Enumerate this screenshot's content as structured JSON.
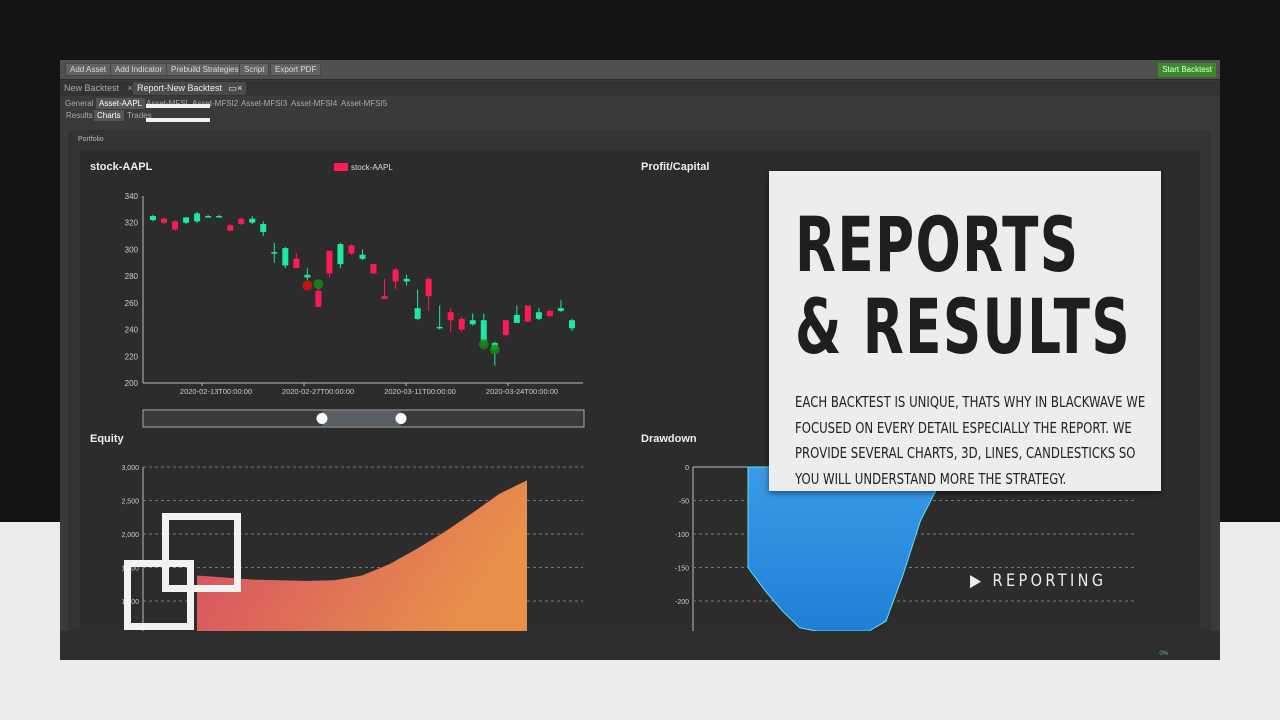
{
  "toolbar": {
    "buttons": [
      "Add Asset",
      "Add Indicator",
      "Prebuild Strategies",
      "Script",
      "Export PDF"
    ],
    "start": "Start Backtest"
  },
  "tabs": [
    {
      "label": "New Backtest",
      "close": "×"
    },
    {
      "label": "Report-New Backtest",
      "close": "×"
    }
  ],
  "asset_tabs": [
    "General",
    "Asset-AAPL",
    "Asset-MFSI",
    "Asset-MFSI2",
    "Asset-MFSI3",
    "Asset-MFSI4",
    "Asset-MFSI5"
  ],
  "view_tabs": [
    "Results",
    "Charts",
    "Trades"
  ],
  "portfolio_label": "Portfolio",
  "colors": {
    "up": "#1de9a0",
    "down": "#ff1a55",
    "buy_marker": "#138a13",
    "sell_marker": "#e01010",
    "equity_top": "#e8904a",
    "equity_bottom": "#d44a66",
    "drawdown": "#1f7fd6",
    "start_button": "#3c8a2a"
  },
  "chart_data": [
    {
      "type": "candlestick",
      "title": "stock-AAPL",
      "legend": "stock-AAPL",
      "legend_placement": "top-center",
      "ylim": [
        200,
        340
      ],
      "yticks": [
        200,
        220,
        240,
        260,
        280,
        300,
        320,
        340
      ],
      "xtick_labels": [
        "2020-02-13T00:00:00",
        "2020-02-27T00:00:00",
        "2020-03-11T00:00:00",
        "2020-03-24T00:00:00"
      ],
      "candles": [
        [
          322,
          326,
          321,
          325
        ],
        [
          323,
          324,
          319,
          320
        ],
        [
          321,
          322,
          314,
          315
        ],
        [
          320,
          324,
          319,
          324
        ],
        [
          321,
          328,
          320,
          327
        ],
        [
          325,
          326,
          324,
          325
        ],
        [
          325,
          326,
          324,
          325
        ],
        [
          318,
          319,
          314,
          314
        ],
        [
          323,
          324,
          318,
          319
        ],
        [
          320,
          325,
          319,
          323
        ],
        [
          313,
          321,
          310,
          319
        ],
        [
          298,
          305,
          290,
          298
        ],
        [
          288,
          302,
          286,
          301
        ],
        [
          293,
          297,
          286,
          286
        ],
        [
          279,
          286,
          277,
          281
        ],
        [
          269,
          271,
          257,
          257
        ],
        [
          299,
          299,
          279,
          282
        ],
        [
          289,
          305,
          286,
          304
        ],
        [
          303,
          304,
          296,
          297
        ],
        [
          293,
          300,
          292,
          296
        ],
        [
          289,
          289,
          282,
          282
        ],
        [
          265,
          278,
          263,
          263
        ],
        [
          285,
          286,
          270,
          276
        ],
        [
          276,
          281,
          273,
          278
        ],
        [
          248,
          270,
          247,
          256
        ],
        [
          278,
          279,
          254,
          265
        ],
        [
          242,
          258,
          240,
          242
        ],
        [
          253,
          256,
          238,
          247
        ],
        [
          248,
          250,
          238,
          240
        ],
        [
          244,
          252,
          243,
          247
        ],
        [
          231,
          252,
          228,
          247
        ],
        [
          225,
          231,
          213,
          230
        ],
        [
          247,
          247,
          235,
          236
        ],
        [
          245,
          258,
          245,
          251
        ],
        [
          258,
          258,
          246,
          246
        ],
        [
          248,
          256,
          247,
          253
        ],
        [
          254,
          255,
          250,
          250
        ],
        [
          254,
          262,
          253,
          256
        ],
        [
          241,
          248,
          239,
          247
        ]
      ],
      "markers": [
        {
          "candle": 14,
          "type": "sell",
          "price": 273
        },
        {
          "candle": 15,
          "type": "buy",
          "price": 274
        },
        {
          "candle": 30,
          "type": "buy",
          "price": 229
        },
        {
          "candle": 31,
          "type": "buy",
          "price": 225
        }
      ]
    },
    {
      "type": "area",
      "title": "Equity",
      "yticks": [
        "3,000",
        "2,500",
        "2,000",
        "1,500",
        "1,000"
      ],
      "ylim": [
        900,
        3000
      ],
      "values": [
        1380,
        1350,
        1320,
        1310,
        1300,
        1310,
        1380,
        1550,
        1780,
        2030,
        2310,
        2600,
        2800
      ]
    },
    {
      "type": "area",
      "title": "Drawdown",
      "yticks": [
        "0",
        "-50",
        "-100",
        "-150",
        "-200"
      ],
      "ylim": [
        -245,
        0
      ],
      "values": [
        0,
        -150,
        -185,
        -215,
        -240,
        -245,
        -245,
        -245,
        -245,
        -230,
        -160,
        -80,
        -30,
        0
      ]
    },
    {
      "type": "line",
      "title": "Profit/Capital"
    }
  ],
  "overlay": {
    "heading_line1": "REPORTS",
    "heading_line2": "& RESULTS",
    "body": "EACH BACKTEST IS UNIQUE, THATS WHY IN BLACKWAVE WE FOCUSED ON EVERY DETAIL ESPECIALLY THE REPORT. WE PROVIDE SEVERAL CHARTS, 3D, LINES, CANDLESTICKS SO YOU WILL UNDERSTAND MORE THE STRATEGY.",
    "badge": "REPORTING",
    "badge_icon": "play-icon"
  },
  "footer": {
    "progress": "0%"
  }
}
